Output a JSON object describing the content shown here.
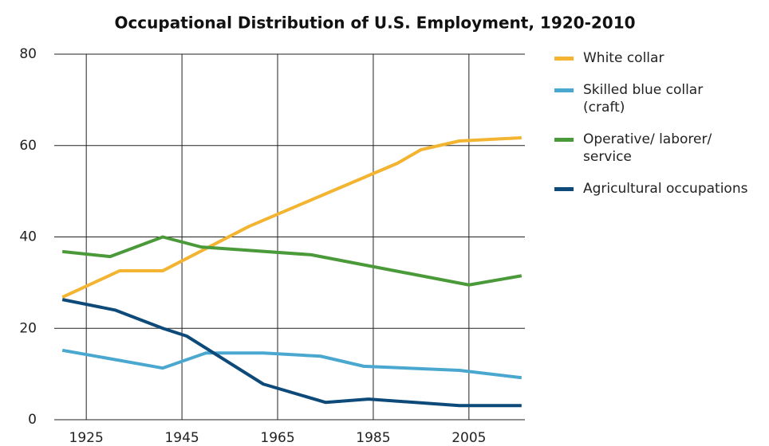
{
  "chart_data": {
    "type": "line",
    "title": "Occupational Distribution of U.S. Employment, 1920-2010",
    "xlim": [
      1918.3,
      2016.7
    ],
    "xticks": [
      1925,
      1945,
      1965,
      1985,
      2005
    ],
    "ylim": [
      0,
      80
    ],
    "yticks": [
      0,
      20,
      40,
      60,
      80
    ],
    "grid": true,
    "legend": "right",
    "series": [
      {
        "name": "White collar",
        "color": "#f2b431",
        "x": [
          1920,
          1932,
          1941,
          1959,
          1990,
          1995,
          2003,
          2016
        ],
        "values": [
          26.8,
          32.6,
          32.6,
          42.3,
          56.1,
          59.1,
          61.0,
          61.7
        ]
      },
      {
        "name": "Skilled blue collar (craft)",
        "color": "#4aa8d0",
        "x": [
          1920,
          1941,
          1950,
          1962,
          1974,
          1983,
          2003,
          2016
        ],
        "values": [
          15.2,
          11.3,
          14.6,
          14.6,
          13.9,
          11.7,
          10.8,
          9.2
        ]
      },
      {
        "name": "Operative/ laborer/ service",
        "color": "#4a9a3a",
        "x": [
          1920,
          1930,
          1941,
          1949,
          1972,
          2005,
          2016
        ],
        "values": [
          36.8,
          35.7,
          40.0,
          37.8,
          36.1,
          29.5,
          31.5
        ]
      },
      {
        "name": "Agricultural occupations",
        "color": "#0d4a79",
        "x": [
          1920,
          1931,
          1941,
          1946,
          1962,
          1975,
          1984,
          2003,
          2016
        ],
        "values": [
          26.3,
          24.0,
          20.0,
          18.3,
          7.8,
          3.8,
          4.5,
          3.1,
          3.1
        ]
      }
    ]
  }
}
